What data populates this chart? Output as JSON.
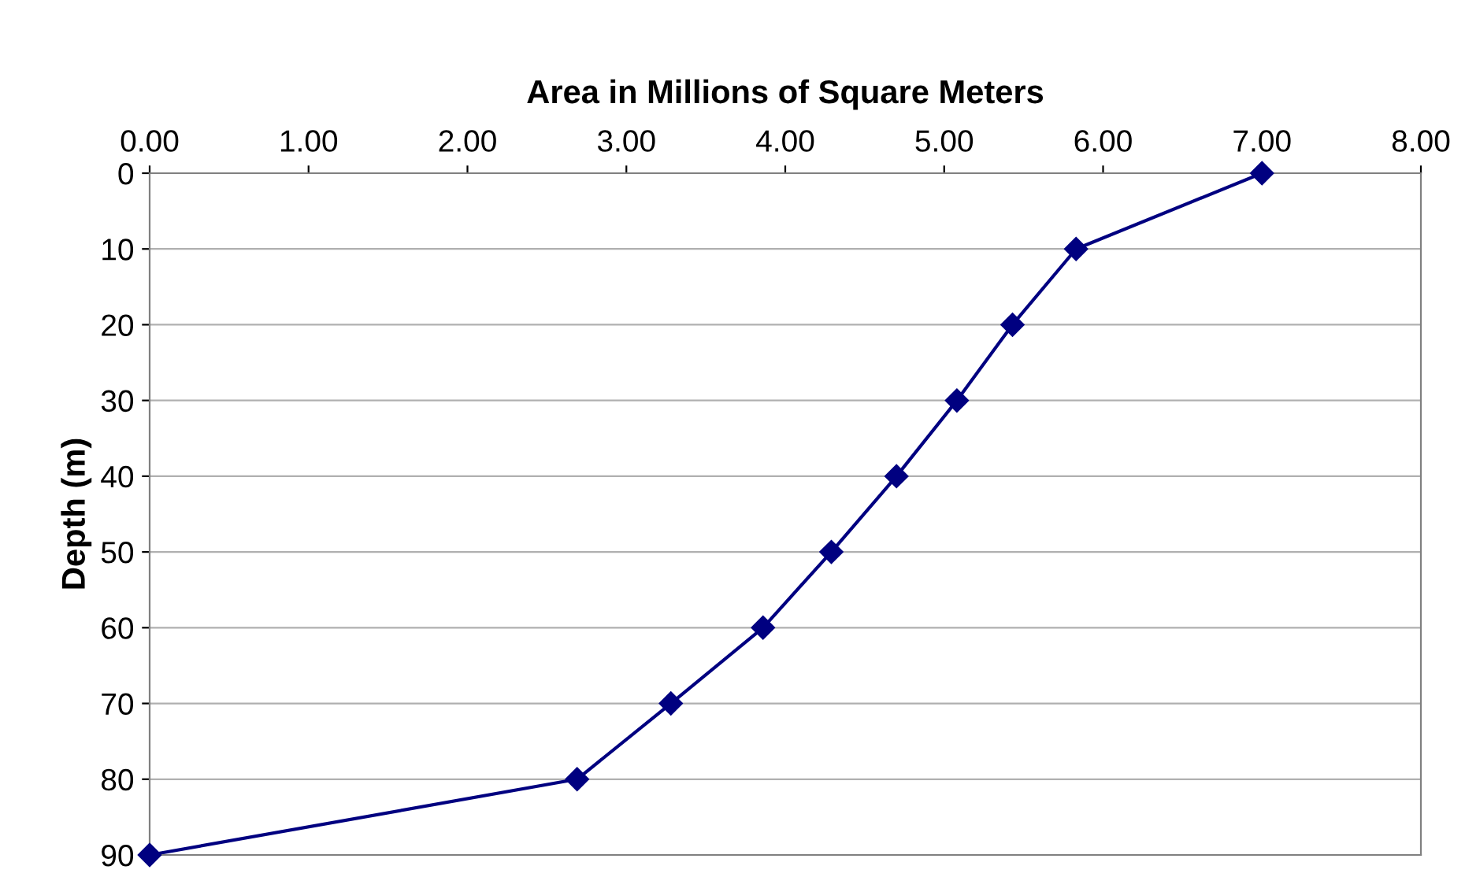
{
  "chart_data": {
    "type": "line",
    "xlabel": "Area in Millions of Square Meters",
    "ylabel": "Depth (m)",
    "x": [
      7.0,
      5.83,
      5.43,
      5.08,
      4.7,
      4.29,
      3.86,
      3.28,
      2.69,
      0.0
    ],
    "series": [
      {
        "color": "#000080",
        "values": [
          0,
          10,
          20,
          30,
          40,
          50,
          60,
          70,
          80,
          90
        ]
      }
    ],
    "xlim": [
      0,
      8
    ],
    "xticks": [
      {
        "value": 0,
        "label": "0.00"
      },
      {
        "value": 1,
        "label": "1.00"
      },
      {
        "value": 2,
        "label": "2.00"
      },
      {
        "value": 3,
        "label": "3.00"
      },
      {
        "value": 4,
        "label": "4.00"
      },
      {
        "value": 5,
        "label": "5.00"
      },
      {
        "value": 6,
        "label": "6.00"
      },
      {
        "value": 7,
        "label": "7.00"
      },
      {
        "value": 8,
        "label": "8.00"
      }
    ],
    "ylim": [
      90,
      0
    ],
    "yticks": [
      0,
      10,
      20,
      30,
      40,
      50,
      60,
      70,
      80,
      90
    ],
    "grid": "y",
    "marker": "diamond",
    "line_style": "solid"
  }
}
